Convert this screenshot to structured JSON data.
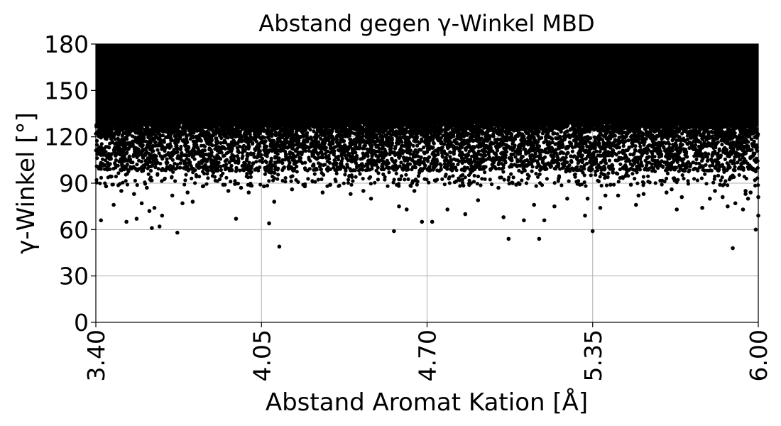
{
  "chart_data": {
    "type": "scatter",
    "title": "Abstand gegen γ-Winkel MBD",
    "xlabel": "Abstand Aromat Kation [Å]",
    "ylabel": "γ-Winkel [°]",
    "xlim": [
      3.4,
      6.0
    ],
    "ylim": [
      0,
      180
    ],
    "xticks": [
      "3.40",
      "4.05",
      "4.70",
      "5.35",
      "6.00"
    ],
    "yticks": [
      "0",
      "30",
      "60",
      "90",
      "120",
      "150",
      "180"
    ],
    "grid": true,
    "marker_color": "#000000",
    "dense_region": {
      "y_from": 128,
      "y_to": 180
    },
    "series": [
      {
        "points": [
          [
            3.42,
            66
          ],
          [
            3.44,
            88
          ],
          [
            3.47,
            76
          ],
          [
            3.5,
            85
          ],
          [
            3.52,
            65
          ],
          [
            3.55,
            83
          ],
          [
            3.56,
            67
          ],
          [
            3.58,
            77
          ],
          [
            3.61,
            72
          ],
          [
            3.62,
            61
          ],
          [
            3.63,
            74
          ],
          [
            3.65,
            62
          ],
          [
            3.66,
            69
          ],
          [
            3.7,
            82
          ],
          [
            3.72,
            58
          ],
          [
            3.74,
            77
          ],
          [
            3.78,
            78
          ],
          [
            3.92,
            85
          ],
          [
            3.95,
            67
          ],
          [
            3.97,
            87
          ],
          [
            4.0,
            84
          ],
          [
            4.06,
            88
          ],
          [
            4.08,
            64
          ],
          [
            4.1,
            78
          ],
          [
            4.12,
            49
          ],
          [
            4.17,
            86
          ],
          [
            4.22,
            88
          ],
          [
            4.29,
            84
          ],
          [
            4.45,
            85
          ],
          [
            4.48,
            80
          ],
          [
            4.57,
            59
          ],
          [
            4.59,
            75
          ],
          [
            4.62,
            73
          ],
          [
            4.65,
            85
          ],
          [
            4.68,
            65
          ],
          [
            4.72,
            65
          ],
          [
            4.78,
            73
          ],
          [
            4.85,
            70
          ],
          [
            4.9,
            79
          ],
          [
            5.0,
            68
          ],
          [
            5.02,
            54
          ],
          [
            5.05,
            89
          ],
          [
            5.08,
            66
          ],
          [
            5.12,
            76
          ],
          [
            5.14,
            54
          ],
          [
            5.16,
            66
          ],
          [
            5.2,
            75
          ],
          [
            5.25,
            80
          ],
          [
            5.32,
            69
          ],
          [
            5.35,
            59
          ],
          [
            5.4,
            82
          ],
          [
            5.45,
            82
          ],
          [
            5.52,
            76
          ],
          [
            5.55,
            83
          ],
          [
            5.68,
            73
          ],
          [
            5.7,
            81
          ],
          [
            5.78,
            74
          ],
          [
            5.85,
            89
          ],
          [
            5.95,
            83
          ],
          [
            6.0,
            81
          ],
          [
            5.3,
            89
          ],
          [
            5.33,
            80
          ],
          [
            5.38,
            74
          ],
          [
            5.42,
            89
          ],
          [
            5.5,
            89
          ],
          [
            5.53,
            82
          ],
          [
            5.64,
            84
          ],
          [
            5.78,
            74
          ],
          [
            5.81,
            80
          ],
          [
            5.83,
            85
          ],
          [
            5.86,
            81
          ],
          [
            5.88,
            75
          ],
          [
            5.9,
            48
          ],
          [
            5.95,
            85
          ],
          [
            5.97,
            84
          ],
          [
            5.99,
            60
          ],
          [
            6.0,
            69
          ],
          [
            5.91,
            77
          ],
          [
            5.94,
            73
          ],
          [
            5.96,
            80
          ],
          [
            5.66,
            86
          ],
          [
            4.98,
            87
          ],
          [
            4.4,
            83
          ],
          [
            4.32,
            89
          ],
          [
            3.9,
            89
          ],
          [
            3.82,
            88
          ],
          [
            3.6,
            87
          ],
          [
            3.76,
            84
          ]
        ]
      }
    ]
  }
}
